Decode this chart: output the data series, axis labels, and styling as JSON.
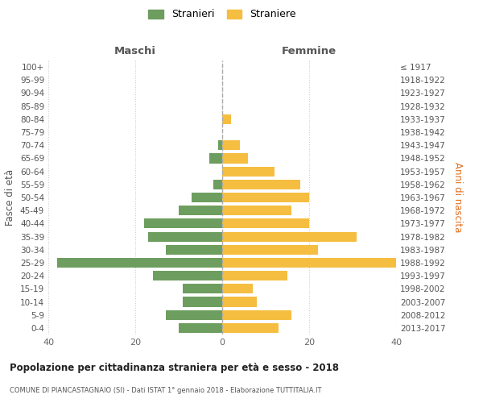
{
  "age_groups": [
    "100+",
    "95-99",
    "90-94",
    "85-89",
    "80-84",
    "75-79",
    "70-74",
    "65-69",
    "60-64",
    "55-59",
    "50-54",
    "45-49",
    "40-44",
    "35-39",
    "30-34",
    "25-29",
    "20-24",
    "15-19",
    "10-14",
    "5-9",
    "0-4"
  ],
  "birth_years": [
    "≤ 1917",
    "1918-1922",
    "1923-1927",
    "1928-1932",
    "1933-1937",
    "1938-1942",
    "1943-1947",
    "1948-1952",
    "1953-1957",
    "1958-1962",
    "1963-1967",
    "1968-1972",
    "1973-1977",
    "1978-1982",
    "1983-1987",
    "1988-1992",
    "1993-1997",
    "1998-2002",
    "2003-2007",
    "2008-2012",
    "2013-2017"
  ],
  "maschi": [
    0,
    0,
    0,
    0,
    0,
    0,
    1,
    3,
    0,
    2,
    7,
    10,
    18,
    17,
    13,
    38,
    16,
    9,
    9,
    13,
    10
  ],
  "femmine": [
    0,
    0,
    0,
    0,
    2,
    0,
    4,
    6,
    12,
    18,
    20,
    16,
    20,
    31,
    22,
    40,
    15,
    7,
    8,
    16,
    13
  ],
  "color_maschi": "#6d9e5f",
  "color_femmine": "#f5be41",
  "title": "Popolazione per cittadinanza straniera per età e sesso - 2018",
  "subtitle": "COMUNE DI PIANCASTAGNAIO (SI) - Dati ISTAT 1° gennaio 2018 - Elaborazione TUTTITALIA.IT",
  "xlabel_left": "Maschi",
  "xlabel_right": "Femmine",
  "ylabel_left": "Fasce di età",
  "ylabel_right": "Anni di nascita",
  "xlim": 40,
  "legend_stranieri": "Stranieri",
  "legend_straniere": "Straniere",
  "background_color": "#ffffff",
  "grid_color": "#cccccc"
}
